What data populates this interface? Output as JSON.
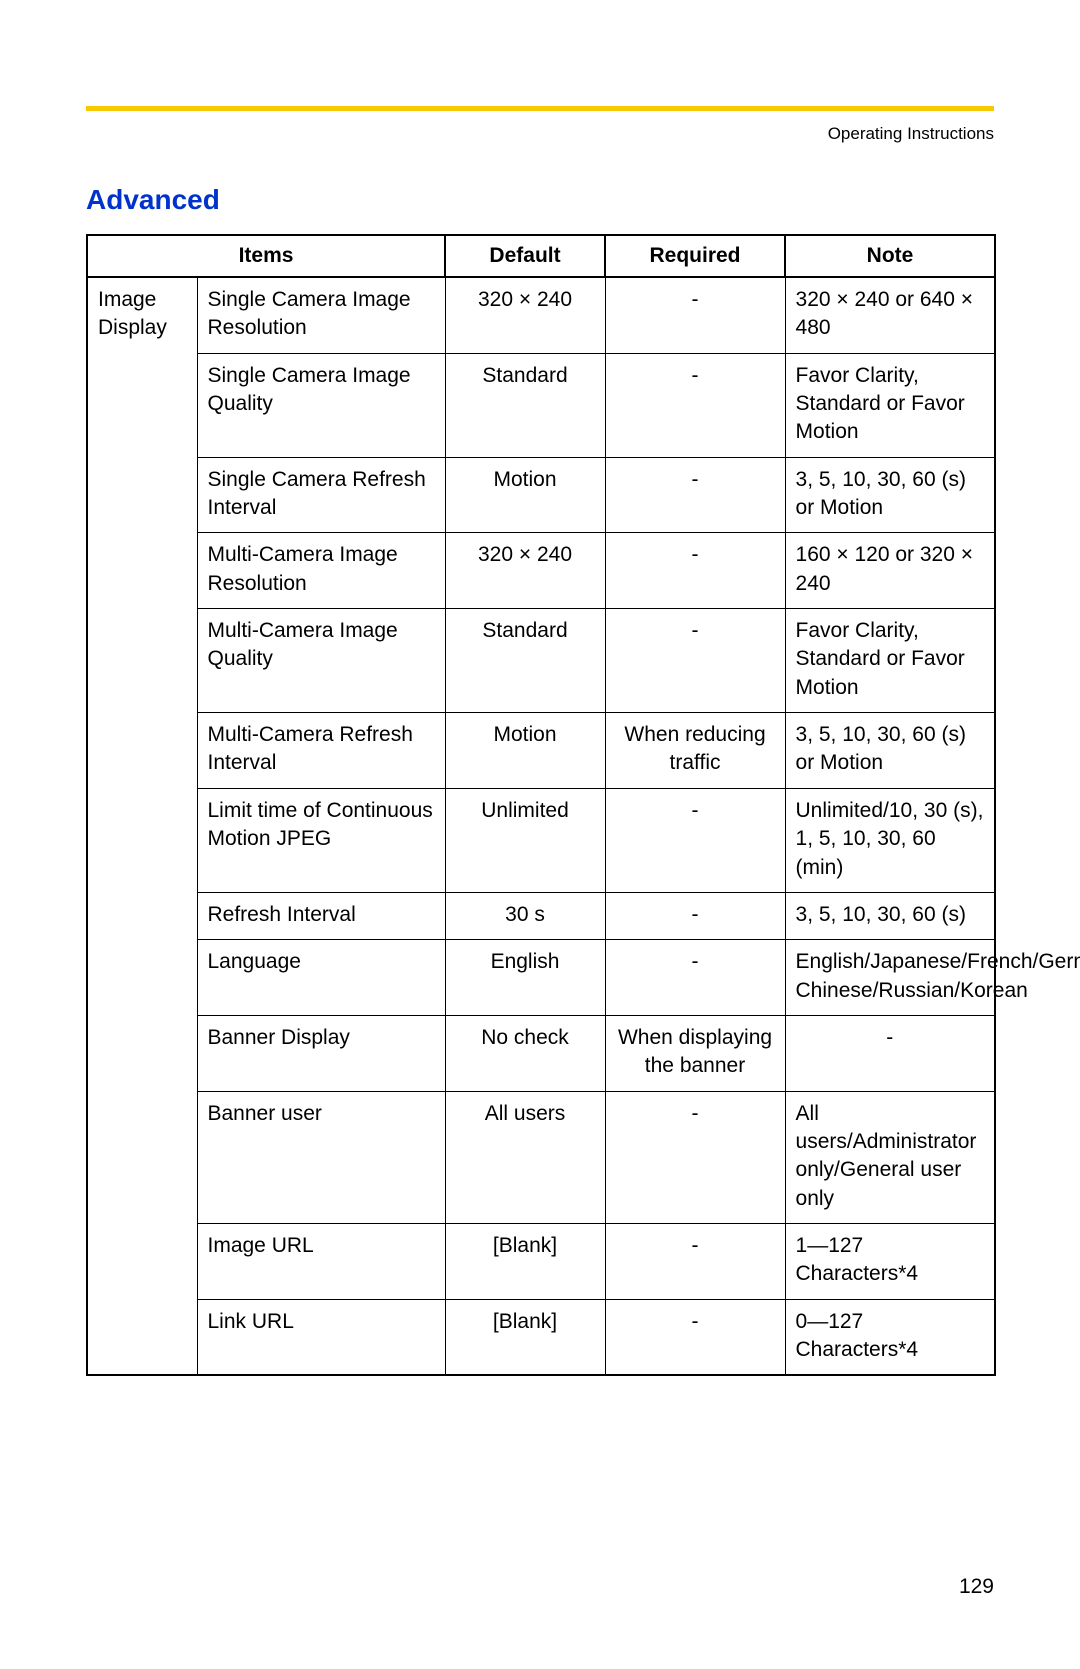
{
  "colors": {
    "accent_bar": "#f6c900",
    "title": "#0033cc",
    "text": "#000000",
    "border": "#000000",
    "background": "#ffffff"
  },
  "typography": {
    "body_fontsize_pt": 16,
    "title_fontsize_pt": 21,
    "header_fontsize_pt": 13
  },
  "header": {
    "doc_title": "Operating Instructions"
  },
  "section": {
    "title": "Advanced"
  },
  "table": {
    "columns": [
      "Items",
      "Default",
      "Required",
      "Note"
    ],
    "group_label": "Image Display",
    "rows": [
      {
        "item": "Single Camera Image Resolution",
        "default": "320 × 240",
        "required": "-",
        "note": "320 × 240 or 640 × 480"
      },
      {
        "item": "Single Camera Image Quality",
        "default": "Standard",
        "required": "-",
        "note": "Favor Clarity, Standard or Favor Motion"
      },
      {
        "item": "Single Camera Refresh Interval",
        "default": "Motion",
        "required": "-",
        "note": "3, 5, 10, 30, 60 (s) or Motion"
      },
      {
        "item": "Multi-Camera Image Resolution",
        "default": "320 × 240",
        "required": "-",
        "note": "160 × 120 or 320 × 240"
      },
      {
        "item": "Multi-Camera Image Quality",
        "default": "Standard",
        "required": "-",
        "note": "Favor Clarity, Standard or Favor Motion"
      },
      {
        "item": "Multi-Camera Refresh Interval",
        "default": "Motion",
        "required": "When reducing traffic",
        "note": "3, 5, 10, 30, 60 (s) or Motion"
      },
      {
        "item": "Limit time of Continuous Motion JPEG",
        "default": "Unlimited",
        "required": "-",
        "note": "Unlimited/10, 30 (s), 1, 5, 10, 30, 60 (min)"
      },
      {
        "item": "Refresh Interval",
        "default": "30 s",
        "required": "-",
        "note": "3, 5, 10, 30, 60 (s)"
      },
      {
        "item": "Language",
        "default": "English",
        "required": "-",
        "note": "English/Japanese/French/German/Italian/Spanish/Simplified Chinese/Russian/Korean"
      },
      {
        "item": "Banner Display",
        "default": "No check",
        "required": "When displaying the banner",
        "note": "-"
      },
      {
        "item": "Banner user",
        "default": "All users",
        "required": "-",
        "note": "All users/Administrator only/General user only"
      },
      {
        "item": "Image URL",
        "default": "[Blank]",
        "required": "-",
        "note": "1—127 Characters*4"
      },
      {
        "item": "Link URL",
        "default": "[Blank]",
        "required": "-",
        "note": "0—127 Characters*4"
      }
    ]
  },
  "footer": {
    "page_number": "129"
  }
}
